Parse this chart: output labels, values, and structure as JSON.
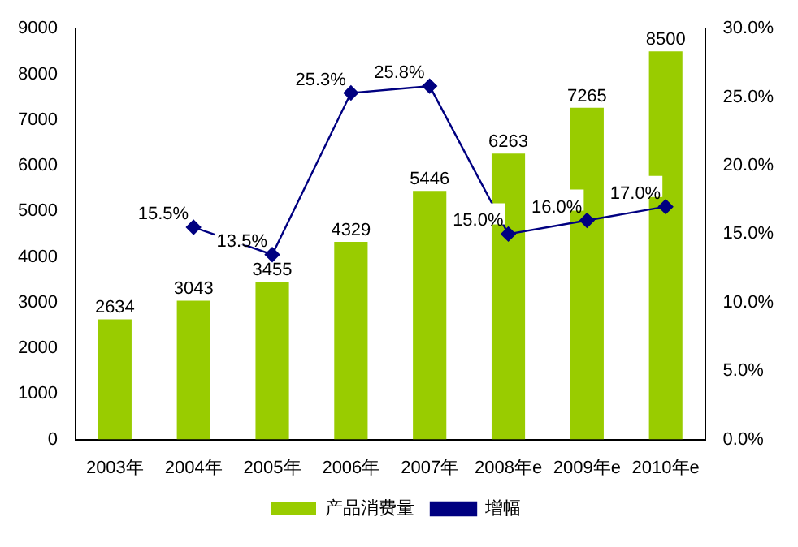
{
  "chart_data": {
    "type": "bar",
    "categories": [
      "2003年",
      "2004年",
      "2005年",
      "2006年",
      "2007年",
      "2008年e",
      "2009年e",
      "2010年e"
    ],
    "series": [
      {
        "name": "产品消费量",
        "color": "#99cc00",
        "values": [
          2634,
          3043,
          3455,
          4329,
          5446,
          6263,
          7265,
          8500
        ],
        "value_labels": [
          "2634",
          "3043",
          "3455",
          "4329",
          "5446",
          "6263",
          "7265",
          "8500"
        ]
      },
      {
        "name": "增幅",
        "type": "line",
        "axis": "y2",
        "color": "#000080",
        "marker": "diamond",
        "values": [
          null,
          15.5,
          13.5,
          25.3,
          25.8,
          15.0,
          16.0,
          17.0
        ],
        "value_labels": [
          null,
          "15.5%",
          "13.5%",
          "25.3%",
          "25.8%",
          "15.0%",
          "16.0%",
          "17.0%"
        ]
      }
    ],
    "ylim": [
      0,
      9000
    ],
    "yticks": [
      0,
      1000,
      2000,
      3000,
      4000,
      5000,
      6000,
      7000,
      8000,
      9000
    ],
    "y2lim": [
      0,
      30
    ],
    "y2ticks": [
      {
        "value": 0,
        "label": "0.0%"
      },
      {
        "value": 5,
        "label": "5.0%"
      },
      {
        "value": 10,
        "label": "10.0%"
      },
      {
        "value": 15,
        "label": "15.0%"
      },
      {
        "value": 20,
        "label": "20.0%"
      },
      {
        "value": 25,
        "label": "25.0%"
      },
      {
        "value": 30,
        "label": "30.0%"
      }
    ],
    "legend": "bottom"
  }
}
